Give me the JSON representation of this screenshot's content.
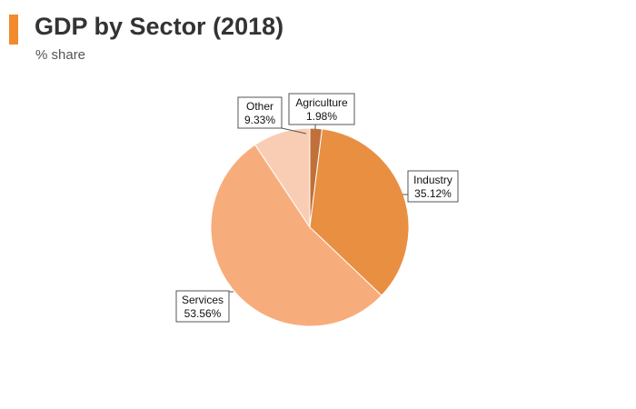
{
  "header": {
    "title": "GDP by Sector (2018)",
    "subtitle": "% share"
  },
  "colors": {
    "accent": "#f28a2e"
  },
  "chart_data": {
    "type": "pie",
    "title": "GDP by Sector (2018)",
    "subtitle": "% share",
    "slices": [
      {
        "name": "Agriculture",
        "value": 1.98,
        "label": "1.98%",
        "color": "#c0703a"
      },
      {
        "name": "Industry",
        "value": 35.12,
        "label": "35.12%",
        "color": "#e98f42"
      },
      {
        "name": "Services",
        "value": 53.56,
        "label": "53.56%",
        "color": "#f7ad7b"
      },
      {
        "name": "Other",
        "value": 9.33,
        "label": "9.33%",
        "color": "#f9cdb3"
      }
    ]
  }
}
